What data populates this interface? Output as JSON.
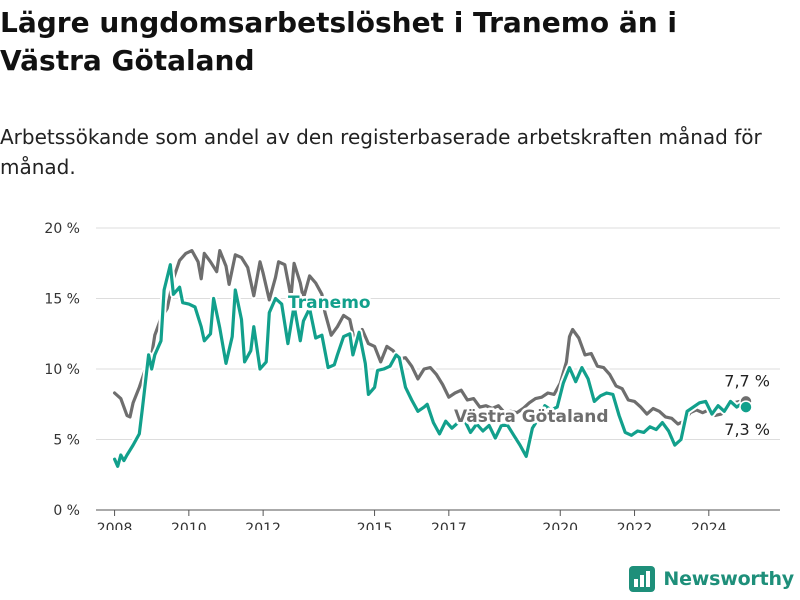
{
  "title": "Lägre ungdomsarbetslöshet i Tranemo än i Västra Götaland",
  "subtitle": "Arbetssökande som andel av den registerbaserade arbetskraften månad för månad.",
  "brand": {
    "name": "Newsworthy",
    "icon": "bar-chart-logo-icon"
  },
  "chart_data": {
    "type": "line",
    "x_domain": [
      "2007-07",
      "2025-12"
    ],
    "ylim": [
      0,
      20
    ],
    "yticks": [
      0,
      5,
      10,
      15,
      20
    ],
    "ytick_labels": [
      "0 %",
      "5 %",
      "10 %",
      "15 %",
      "20 %"
    ],
    "xticks": [
      2008,
      2010,
      2012,
      2015,
      2017,
      2020,
      2022,
      2024
    ],
    "xtick_labels": [
      "2008",
      "2010",
      "2012",
      "2015",
      "2017",
      "2020",
      "2022",
      "2024"
    ],
    "grid": true,
    "series": [
      {
        "name": "Västra Götaland",
        "color": "#6e6e6e",
        "end_label": "7,7 %",
        "points": [
          [
            "2008-01",
            8.3
          ],
          [
            "2008-03",
            7.9
          ],
          [
            "2008-05",
            6.7
          ],
          [
            "2008-06",
            6.6
          ],
          [
            "2008-07",
            7.6
          ],
          [
            "2008-09",
            8.7
          ],
          [
            "2008-11",
            10.0
          ],
          [
            "2009-01",
            11.0
          ],
          [
            "2009-02",
            12.4
          ],
          [
            "2009-04",
            13.6
          ],
          [
            "2009-06",
            14.3
          ],
          [
            "2009-08",
            16.4
          ],
          [
            "2009-10",
            17.7
          ],
          [
            "2009-12",
            18.2
          ],
          [
            "2010-02",
            18.4
          ],
          [
            "2010-04",
            17.6
          ],
          [
            "2010-05",
            16.4
          ],
          [
            "2010-06",
            18.2
          ],
          [
            "2010-08",
            17.6
          ],
          [
            "2010-10",
            16.9
          ],
          [
            "2010-11",
            18.4
          ],
          [
            "2011-01",
            17.3
          ],
          [
            "2011-02",
            16.0
          ],
          [
            "2011-04",
            18.1
          ],
          [
            "2011-06",
            17.9
          ],
          [
            "2011-08",
            17.2
          ],
          [
            "2011-10",
            15.2
          ],
          [
            "2011-12",
            17.6
          ],
          [
            "2012-01",
            16.8
          ],
          [
            "2012-03",
            14.9
          ],
          [
            "2012-05",
            16.5
          ],
          [
            "2012-06",
            17.6
          ],
          [
            "2012-08",
            17.4
          ],
          [
            "2012-10",
            15.1
          ],
          [
            "2012-11",
            17.5
          ],
          [
            "2013-01",
            16.1
          ],
          [
            "2013-02",
            15.0
          ],
          [
            "2013-04",
            16.6
          ],
          [
            "2013-06",
            16.1
          ],
          [
            "2013-08",
            15.3
          ],
          [
            "2013-09",
            14.0
          ],
          [
            "2013-11",
            12.4
          ],
          [
            "2014-01",
            13.0
          ],
          [
            "2014-03",
            13.8
          ],
          [
            "2014-05",
            13.5
          ],
          [
            "2014-07",
            11.5
          ],
          [
            "2014-09",
            12.8
          ],
          [
            "2014-11",
            11.8
          ],
          [
            "2015-01",
            11.6
          ],
          [
            "2015-03",
            10.5
          ],
          [
            "2015-05",
            11.6
          ],
          [
            "2015-07",
            11.3
          ],
          [
            "2015-09",
            10.7
          ],
          [
            "2015-11",
            10.8
          ],
          [
            "2016-01",
            10.2
          ],
          [
            "2016-03",
            9.3
          ],
          [
            "2016-05",
            10.0
          ],
          [
            "2016-07",
            10.1
          ],
          [
            "2016-09",
            9.6
          ],
          [
            "2016-11",
            8.9
          ],
          [
            "2017-01",
            8.0
          ],
          [
            "2017-03",
            8.3
          ],
          [
            "2017-05",
            8.5
          ],
          [
            "2017-07",
            7.8
          ],
          [
            "2017-09",
            7.9
          ],
          [
            "2017-11",
            7.3
          ],
          [
            "2018-01",
            7.4
          ],
          [
            "2018-03",
            7.2
          ],
          [
            "2018-05",
            7.4
          ],
          [
            "2018-07",
            6.9
          ],
          [
            "2018-09",
            7.0
          ],
          [
            "2018-11",
            6.9
          ],
          [
            "2019-01",
            7.2
          ],
          [
            "2019-03",
            7.6
          ],
          [
            "2019-05",
            7.9
          ],
          [
            "2019-07",
            8.0
          ],
          [
            "2019-09",
            8.3
          ],
          [
            "2019-11",
            8.2
          ],
          [
            "2020-01",
            9.0
          ],
          [
            "2020-03",
            10.5
          ],
          [
            "2020-04",
            12.3
          ],
          [
            "2020-05",
            12.8
          ],
          [
            "2020-07",
            12.2
          ],
          [
            "2020-09",
            11.0
          ],
          [
            "2020-11",
            11.1
          ],
          [
            "2021-01",
            10.2
          ],
          [
            "2021-03",
            10.1
          ],
          [
            "2021-05",
            9.6
          ],
          [
            "2021-07",
            8.8
          ],
          [
            "2021-09",
            8.6
          ],
          [
            "2021-11",
            7.8
          ],
          [
            "2022-01",
            7.7
          ],
          [
            "2022-03",
            7.3
          ],
          [
            "2022-05",
            6.8
          ],
          [
            "2022-07",
            7.2
          ],
          [
            "2022-09",
            7.0
          ],
          [
            "2022-11",
            6.6
          ],
          [
            "2023-01",
            6.5
          ],
          [
            "2023-03",
            6.1
          ],
          [
            "2023-05",
            6.3
          ],
          [
            "2023-07",
            6.9
          ],
          [
            "2023-09",
            7.1
          ],
          [
            "2023-11",
            6.9
          ],
          [
            "2024-01",
            7.1
          ],
          [
            "2024-03",
            6.7
          ],
          [
            "2024-05",
            6.8
          ],
          [
            "2024-07",
            7.3
          ],
          [
            "2024-09",
            7.6
          ],
          [
            "2024-11",
            7.7
          ],
          [
            "2025-01",
            7.7
          ]
        ]
      },
      {
        "name": "Tranemo",
        "color": "#12a08c",
        "end_label": "7,3 %",
        "points": [
          [
            "2008-01",
            3.6
          ],
          [
            "2008-02",
            3.1
          ],
          [
            "2008-03",
            3.9
          ],
          [
            "2008-04",
            3.5
          ],
          [
            "2008-05",
            3.9
          ],
          [
            "2008-07",
            4.6
          ],
          [
            "2008-09",
            5.4
          ],
          [
            "2008-10",
            7.2
          ],
          [
            "2008-12",
            11.0
          ],
          [
            "2009-01",
            10.0
          ],
          [
            "2009-02",
            11.0
          ],
          [
            "2009-04",
            12.0
          ],
          [
            "2009-05",
            15.6
          ],
          [
            "2009-07",
            17.4
          ],
          [
            "2009-08",
            15.3
          ],
          [
            "2009-10",
            15.8
          ],
          [
            "2009-11",
            14.7
          ],
          [
            "2010-01",
            14.6
          ],
          [
            "2010-03",
            14.4
          ],
          [
            "2010-05",
            13.0
          ],
          [
            "2010-06",
            12.0
          ],
          [
            "2010-08",
            12.5
          ],
          [
            "2010-09",
            15.0
          ],
          [
            "2010-11",
            12.9
          ],
          [
            "2011-01",
            10.4
          ],
          [
            "2011-03",
            12.3
          ],
          [
            "2011-04",
            15.6
          ],
          [
            "2011-06",
            13.5
          ],
          [
            "2011-07",
            10.5
          ],
          [
            "2011-09",
            11.3
          ],
          [
            "2011-10",
            13.0
          ],
          [
            "2011-12",
            10.0
          ],
          [
            "2012-02",
            10.5
          ],
          [
            "2012-03",
            14.0
          ],
          [
            "2012-05",
            15.0
          ],
          [
            "2012-07",
            14.6
          ],
          [
            "2012-09",
            11.8
          ],
          [
            "2012-11",
            14.5
          ],
          [
            "2013-01",
            12.0
          ],
          [
            "2013-02",
            13.4
          ],
          [
            "2013-04",
            14.3
          ],
          [
            "2013-06",
            12.2
          ],
          [
            "2013-08",
            12.4
          ],
          [
            "2013-10",
            10.1
          ],
          [
            "2013-12",
            10.3
          ],
          [
            "2014-01",
            11.0
          ],
          [
            "2014-03",
            12.3
          ],
          [
            "2014-05",
            12.5
          ],
          [
            "2014-06",
            11.0
          ],
          [
            "2014-08",
            12.6
          ],
          [
            "2014-10",
            10.4
          ],
          [
            "2014-11",
            8.2
          ],
          [
            "2015-01",
            8.7
          ],
          [
            "2015-02",
            9.9
          ],
          [
            "2015-04",
            10.0
          ],
          [
            "2015-06",
            10.2
          ],
          [
            "2015-08",
            11.0
          ],
          [
            "2015-09",
            10.8
          ],
          [
            "2015-11",
            8.7
          ],
          [
            "2016-01",
            7.8
          ],
          [
            "2016-03",
            7.0
          ],
          [
            "2016-05",
            7.3
          ],
          [
            "2016-06",
            7.5
          ],
          [
            "2016-08",
            6.2
          ],
          [
            "2016-10",
            5.4
          ],
          [
            "2016-12",
            6.3
          ],
          [
            "2017-02",
            5.8
          ],
          [
            "2017-04",
            6.2
          ],
          [
            "2017-06",
            6.4
          ],
          [
            "2017-08",
            5.5
          ],
          [
            "2017-10",
            6.1
          ],
          [
            "2017-12",
            5.6
          ],
          [
            "2018-02",
            6.0
          ],
          [
            "2018-04",
            5.1
          ],
          [
            "2018-06",
            6.0
          ],
          [
            "2018-08",
            6.0
          ],
          [
            "2018-10",
            5.3
          ],
          [
            "2018-12",
            4.6
          ],
          [
            "2019-02",
            3.8
          ],
          [
            "2019-04",
            5.8
          ],
          [
            "2019-06",
            6.5
          ],
          [
            "2019-08",
            7.4
          ],
          [
            "2019-10",
            7.1
          ],
          [
            "2019-12",
            7.3
          ],
          [
            "2020-02",
            9.0
          ],
          [
            "2020-04",
            10.1
          ],
          [
            "2020-06",
            9.1
          ],
          [
            "2020-08",
            10.1
          ],
          [
            "2020-10",
            9.3
          ],
          [
            "2020-12",
            7.7
          ],
          [
            "2021-02",
            8.1
          ],
          [
            "2021-04",
            8.3
          ],
          [
            "2021-06",
            8.2
          ],
          [
            "2021-08",
            6.7
          ],
          [
            "2021-10",
            5.5
          ],
          [
            "2021-12",
            5.3
          ],
          [
            "2022-02",
            5.6
          ],
          [
            "2022-04",
            5.5
          ],
          [
            "2022-06",
            5.9
          ],
          [
            "2022-08",
            5.7
          ],
          [
            "2022-10",
            6.2
          ],
          [
            "2022-12",
            5.6
          ],
          [
            "2023-02",
            4.6
          ],
          [
            "2023-04",
            5.0
          ],
          [
            "2023-06",
            7.0
          ],
          [
            "2023-08",
            7.3
          ],
          [
            "2023-10",
            7.6
          ],
          [
            "2023-12",
            7.7
          ],
          [
            "2024-02",
            6.8
          ],
          [
            "2024-04",
            7.4
          ],
          [
            "2024-06",
            7.0
          ],
          [
            "2024-08",
            7.7
          ],
          [
            "2024-10",
            7.3
          ],
          [
            "2024-12",
            7.6
          ],
          [
            "2025-01",
            7.3
          ]
        ]
      }
    ]
  }
}
